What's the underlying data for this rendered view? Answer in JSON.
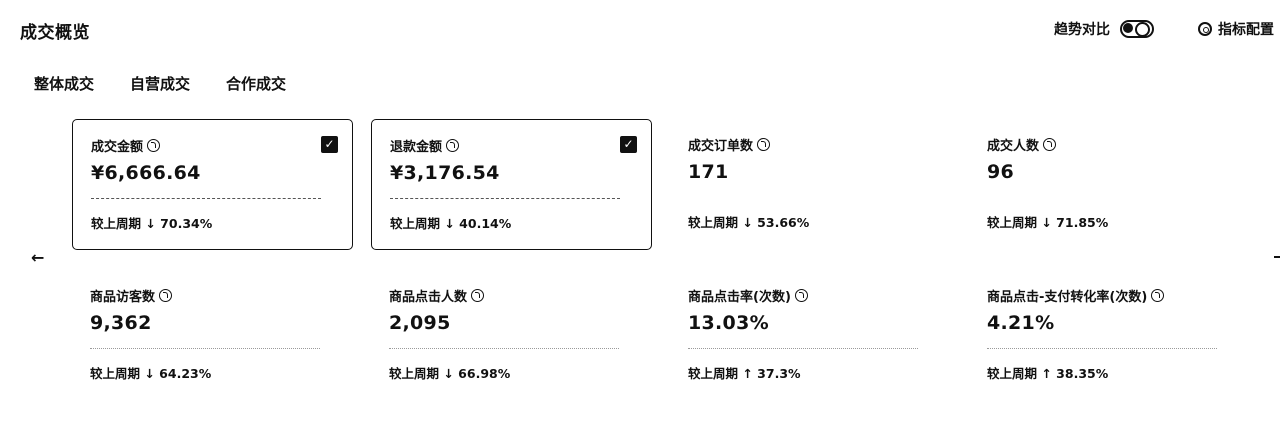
{
  "header": {
    "title": "成交概览",
    "trend_label": "趋势对比",
    "config_label": "指标配置"
  },
  "tabs": [
    {
      "label": "整体成交"
    },
    {
      "label": "自营成交"
    },
    {
      "label": "合作成交"
    }
  ],
  "metrics": [
    {
      "label": "成交金额",
      "value": "¥6,666.64",
      "compare": "较上周期 ↓ 70.34%",
      "selected": true
    },
    {
      "label": "退款金额",
      "value": "¥3,176.54",
      "compare": "较上周期 ↓ 40.14%",
      "selected": true
    },
    {
      "label": "成交订单数",
      "value": "171",
      "compare": "较上周期 ↓ 53.66%",
      "selected": false
    },
    {
      "label": "成交人数",
      "value": "96",
      "compare": "较上周期 ↓ 71.85%",
      "selected": false
    },
    {
      "label": "商品访客数",
      "value": "9,362",
      "compare": "较上周期 ↓ 64.23%",
      "selected": false
    },
    {
      "label": "商品点击人数",
      "value": "2,095",
      "compare": "较上周期 ↓ 66.98%",
      "selected": false
    },
    {
      "label": "商品点击率(次数)",
      "value": "13.03%",
      "compare": "较上周期 ↑ 37.3%",
      "selected": false
    },
    {
      "label": "商品点击-支付转化率(次数)",
      "value": "4.21%",
      "compare": "较上周期 ↑ 38.35%",
      "selected": false
    }
  ],
  "nav": {
    "prev_arrow": "←"
  },
  "checkbox_mark": "✓"
}
